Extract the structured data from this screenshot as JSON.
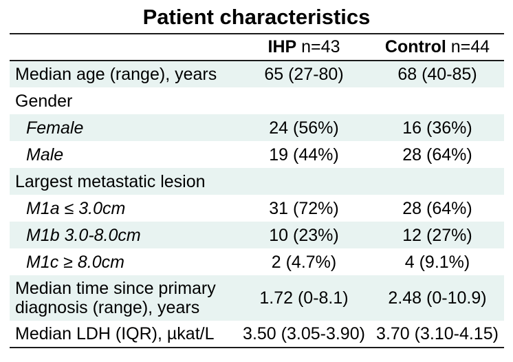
{
  "page_title": "Patient characteristics",
  "header": {
    "ihp_label": "IHP",
    "ihp_n": "n=43",
    "control_label": "Control",
    "control_n": "n=44"
  },
  "chart_data": {
    "type": "table",
    "title": "Patient characteristics",
    "columns": [
      "",
      "IHP n=43",
      "Control n=44"
    ],
    "rows": [
      [
        "Median age (range), years",
        "65 (27-80)",
        "68 (40-85)"
      ],
      [
        "Gender",
        "",
        ""
      ],
      [
        "Female",
        "24 (56%)",
        "16 (36%)"
      ],
      [
        "Male",
        "19 (44%)",
        "28 (64%)"
      ],
      [
        "Largest metastatic lesion",
        "",
        ""
      ],
      [
        "M1a ≤ 3.0cm",
        "31 (72%)",
        "28 (64%)"
      ],
      [
        "M1b 3.0-8.0cm",
        "10 (23%)",
        "12 (27%)"
      ],
      [
        "M1c ≥ 8.0cm",
        "2 (4.7%)",
        "4 (9.1%)"
      ],
      [
        "Median time since primary diagnosis (range), years",
        "1.72 (0-8.1)",
        "2.48 (0-10.9)"
      ],
      [
        "Median LDH (IQR), µkat/L",
        "3.50 (3.05-3.90)",
        "3.70 (3.10-4.15)"
      ]
    ],
    "layout_hints": {
      "shaded_row_indices": [
        0,
        2,
        4,
        6,
        8
      ],
      "indented_italic_row_indices": [
        2,
        3,
        5,
        6,
        7
      ],
      "section_header_row_indices": [
        1,
        4
      ]
    }
  },
  "colors": {
    "row_shade": "#e8f3f1",
    "rule": "#1a1a1a",
    "text": "#000000",
    "background": "#ffffff"
  }
}
